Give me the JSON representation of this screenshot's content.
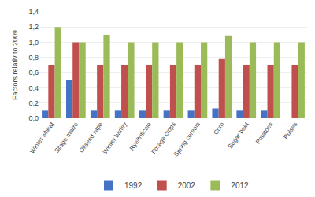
{
  "chart_data": {
    "type": "bar",
    "categories": [
      "Winter wheat",
      "Silage maize",
      "Oilseed rape",
      "Winter barley",
      "Rye/triticale",
      "Forage crops",
      "Spring cereals",
      "Corn",
      "Sugar beet",
      "Potatoes",
      "Pulses"
    ],
    "series": [
      {
        "name": "1992",
        "color": "#4472C4",
        "values": [
          0.1,
          0.5,
          0.1,
          0.1,
          0.1,
          0.1,
          0.1,
          0.13,
          0.1,
          0.1,
          0.0
        ]
      },
      {
        "name": "2002",
        "color": "#C0504D",
        "values": [
          0.7,
          1.0,
          0.7,
          0.7,
          0.7,
          0.7,
          0.7,
          0.78,
          0.7,
          0.7,
          0.7
        ]
      },
      {
        "name": "2012",
        "color": "#9BBB59",
        "values": [
          1.2,
          1.0,
          1.1,
          1.0,
          1.0,
          1.0,
          1.0,
          1.08,
          1.0,
          1.0,
          1.0
        ]
      }
    ],
    "ylabel": "Factors relativ to 2009",
    "ylim": [
      0,
      1.4
    ],
    "yticks": [
      {
        "value": 0.0,
        "label": "0,0"
      },
      {
        "value": 0.2,
        "label": "0,2"
      },
      {
        "value": 0.4,
        "label": "0,4"
      },
      {
        "value": 0.6,
        "label": "0,6"
      },
      {
        "value": 0.8,
        "label": "0,8"
      },
      {
        "value": 1.0,
        "label": "1,0"
      },
      {
        "value": 1.2,
        "label": "1,2"
      },
      {
        "value": 1.4,
        "label": "1,4"
      }
    ],
    "grid": true,
    "legend": "bottom"
  }
}
